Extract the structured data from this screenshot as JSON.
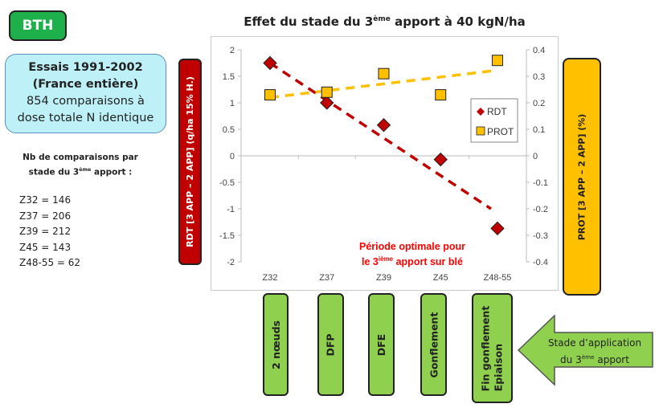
{
  "badge": "BTH",
  "info": {
    "line1": "Essais 1991-2002",
    "line2": "(France entière)",
    "line3": "854 comparaisons à",
    "line4": "dose totale N identique"
  },
  "counts_title": {
    "pre": "Nb de comparaisons  par stade du 3",
    "sup": "ème",
    "post": " apport :"
  },
  "counts": [
    "Z32 =  146",
    "Z37 = 206",
    "Z39 = 212",
    "Z45 =  143",
    "Z48-55 = 62"
  ],
  "stages": [
    "2 nœuds",
    "DFP",
    "DFE",
    "Gonflement",
    "Fin gonflement",
    "Epiaison"
  ],
  "arrow": {
    "line1": "Stade d’application",
    "pre": "du 3",
    "sup": "ème",
    "post": " apport"
  },
  "chart_data": {
    "type": "scatter",
    "title": {
      "pre": "Effet du stade du 3",
      "sup": "ème",
      "post": " apport à 40 kgN/ha"
    },
    "ylabel": "RDT [3 APP – 2 APP] (q/ha 15% H.)",
    "y2label": "PROT [3 APP – 2 APP] (%)",
    "categories": [
      "Z32",
      "Z37",
      "Z39",
      "Z45",
      "Z48-55"
    ],
    "ylim": [
      -2,
      2
    ],
    "yticks": [
      "2",
      "1.5",
      "1",
      "0.5",
      "0",
      "-0.5",
      "-1",
      "-1.5",
      "-2"
    ],
    "y2lim": [
      -0.4,
      0.4
    ],
    "y2ticks": [
      "0.4",
      "0.3",
      "0.2",
      "0.1",
      "0",
      "-0.1",
      "-0.2",
      "-0.3",
      "-0.4"
    ],
    "series": [
      {
        "name": "RDT",
        "axis": "left",
        "marker": "diamond",
        "color": "#c00000",
        "values": [
          1.75,
          1.0,
          0.58,
          -0.07,
          -1.37
        ],
        "trend": [
          1.75,
          -1.0
        ]
      },
      {
        "name": "PROT",
        "axis": "right",
        "marker": "square",
        "color": "#ffc000",
        "values": [
          0.23,
          0.24,
          0.31,
          0.23,
          0.36
        ],
        "trend": [
          0.22,
          0.32
        ]
      }
    ],
    "legend": "right",
    "annotation": {
      "line1": "Période optimale pour",
      "pre": "le 3",
      "sup": "ième",
      "post": " apport sur blé",
      "color": "#ff0000"
    }
  }
}
